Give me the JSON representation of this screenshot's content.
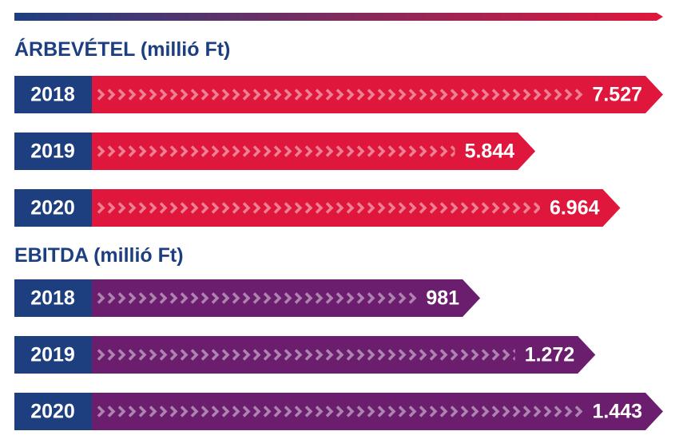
{
  "chart_data": [
    {
      "type": "bar",
      "orientation": "horizontal",
      "title": "ÁRBEVÉTEL (millió Ft)",
      "categories": [
        "2018",
        "2019",
        "2020"
      ],
      "values": [
        7527,
        5844,
        6964
      ],
      "value_labels": [
        "7.527",
        "5.844",
        "6.964"
      ],
      "color": "#e0173c"
    },
    {
      "type": "bar",
      "orientation": "horizontal",
      "title": "EBITDA (millió Ft)",
      "categories": [
        "2018",
        "2019",
        "2020"
      ],
      "values": [
        981,
        1272,
        1443
      ],
      "value_labels": [
        "981",
        "1.272",
        "1.443"
      ],
      "color": "#6b1e6e"
    }
  ]
}
